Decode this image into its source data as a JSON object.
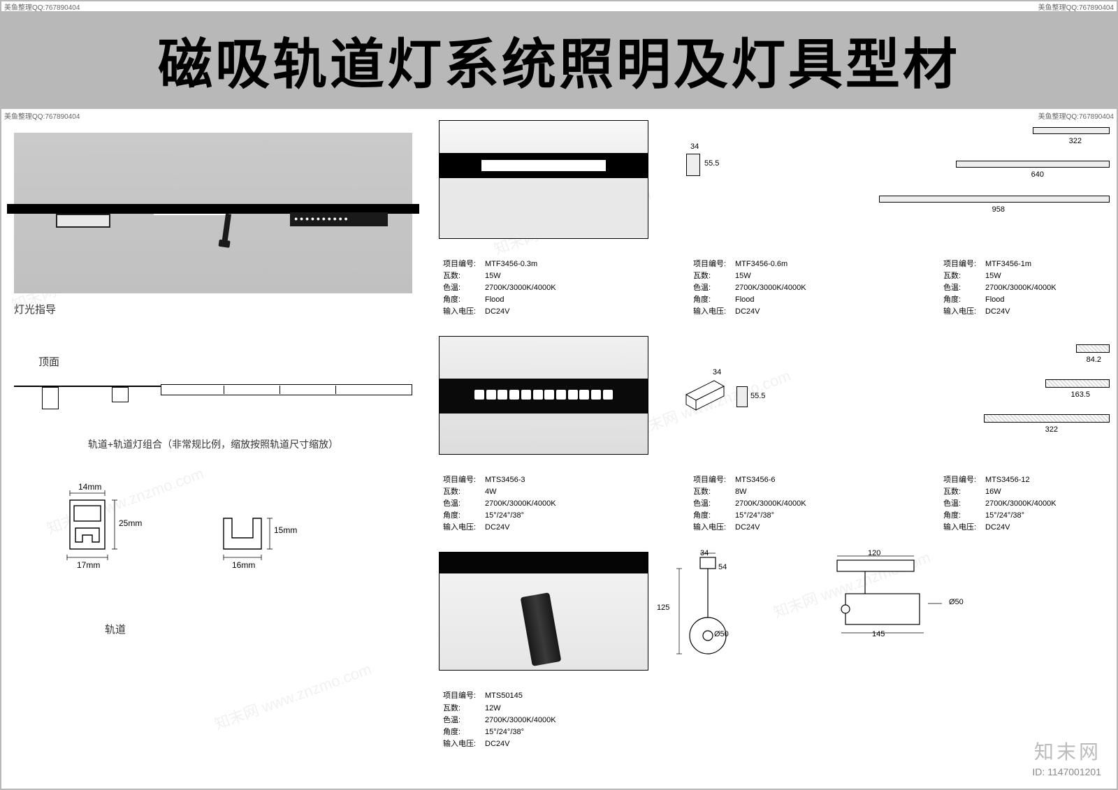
{
  "watermark": "美鱼整理QQ:767890404",
  "watermark_diag": "知末网 www.znzmo.com",
  "title": "磁吸轨道灯系统照明及灯具型材",
  "left": {
    "light_guide": "灯光指导",
    "top_view": "顶面",
    "combo_caption": "轨道+轨道灯组合（非常规比例，缩放按照轨道尺寸缩放）",
    "track_caption": "轨道",
    "profile_a": {
      "w_top": "14mm",
      "h": "25mm",
      "w_bottom": "17mm"
    },
    "profile_b": {
      "w": "16mm",
      "h": "15mm"
    }
  },
  "spec_labels": {
    "model": "项目编号:",
    "watt": "瓦数:",
    "cct": "色温:",
    "angle": "角度:",
    "volt": "输入电压:"
  },
  "row1": {
    "section_dims": {
      "w": "34",
      "h": "55.5"
    },
    "bars": [
      {
        "len": "322"
      },
      {
        "len": "640"
      },
      {
        "len": "958"
      }
    ],
    "specs": [
      {
        "model": "MTF3456-0.3m",
        "watt": "15W",
        "cct": "2700K/3000K/4000K",
        "angle": "Flood",
        "volt": "DC24V"
      },
      {
        "model": "MTF3456-0.6m",
        "watt": "15W",
        "cct": "2700K/3000K/4000K",
        "angle": "Flood",
        "volt": "DC24V"
      },
      {
        "model": "MTF3456-1m",
        "watt": "15W",
        "cct": "2700K/3000K/4000K",
        "angle": "Flood",
        "volt": "DC24V"
      }
    ]
  },
  "row2": {
    "section_dims": {
      "w": "34",
      "h": "55.5"
    },
    "bars": [
      {
        "len": "84.2"
      },
      {
        "len": "163.5"
      },
      {
        "len": "322"
      }
    ],
    "specs": [
      {
        "model": "MTS3456-3",
        "watt": "4W",
        "cct": "2700K/3000K/4000K",
        "angle": "15°/24°/38°",
        "volt": "DC24V"
      },
      {
        "model": "MTS3456-6",
        "watt": "8W",
        "cct": "2700K/3000K/4000K",
        "angle": "15°/24°/38°",
        "volt": "DC24V"
      },
      {
        "model": "MTS3456-12",
        "watt": "16W",
        "cct": "2700K/3000K/4000K",
        "angle": "15°/24°/38°",
        "volt": "DC24V"
      }
    ]
  },
  "row3": {
    "dims": {
      "w": "34",
      "h": "125",
      "dia": "Ø50",
      "head_a": "54",
      "top_w": "120",
      "bot_w": "145",
      "dia2": "Ø50"
    },
    "specs": [
      {
        "model": "MTS50145",
        "watt": "12W",
        "cct": "2700K/3000K/4000K",
        "angle": "15°/24°/38°",
        "volt": "DC24V"
      }
    ]
  },
  "footer": {
    "brand": "知末网",
    "id": "ID: 1147001201"
  },
  "colors": {
    "band": "#b8b8b8",
    "text": "#000000",
    "outline": "#000000",
    "page_bg": "#ffffff"
  }
}
